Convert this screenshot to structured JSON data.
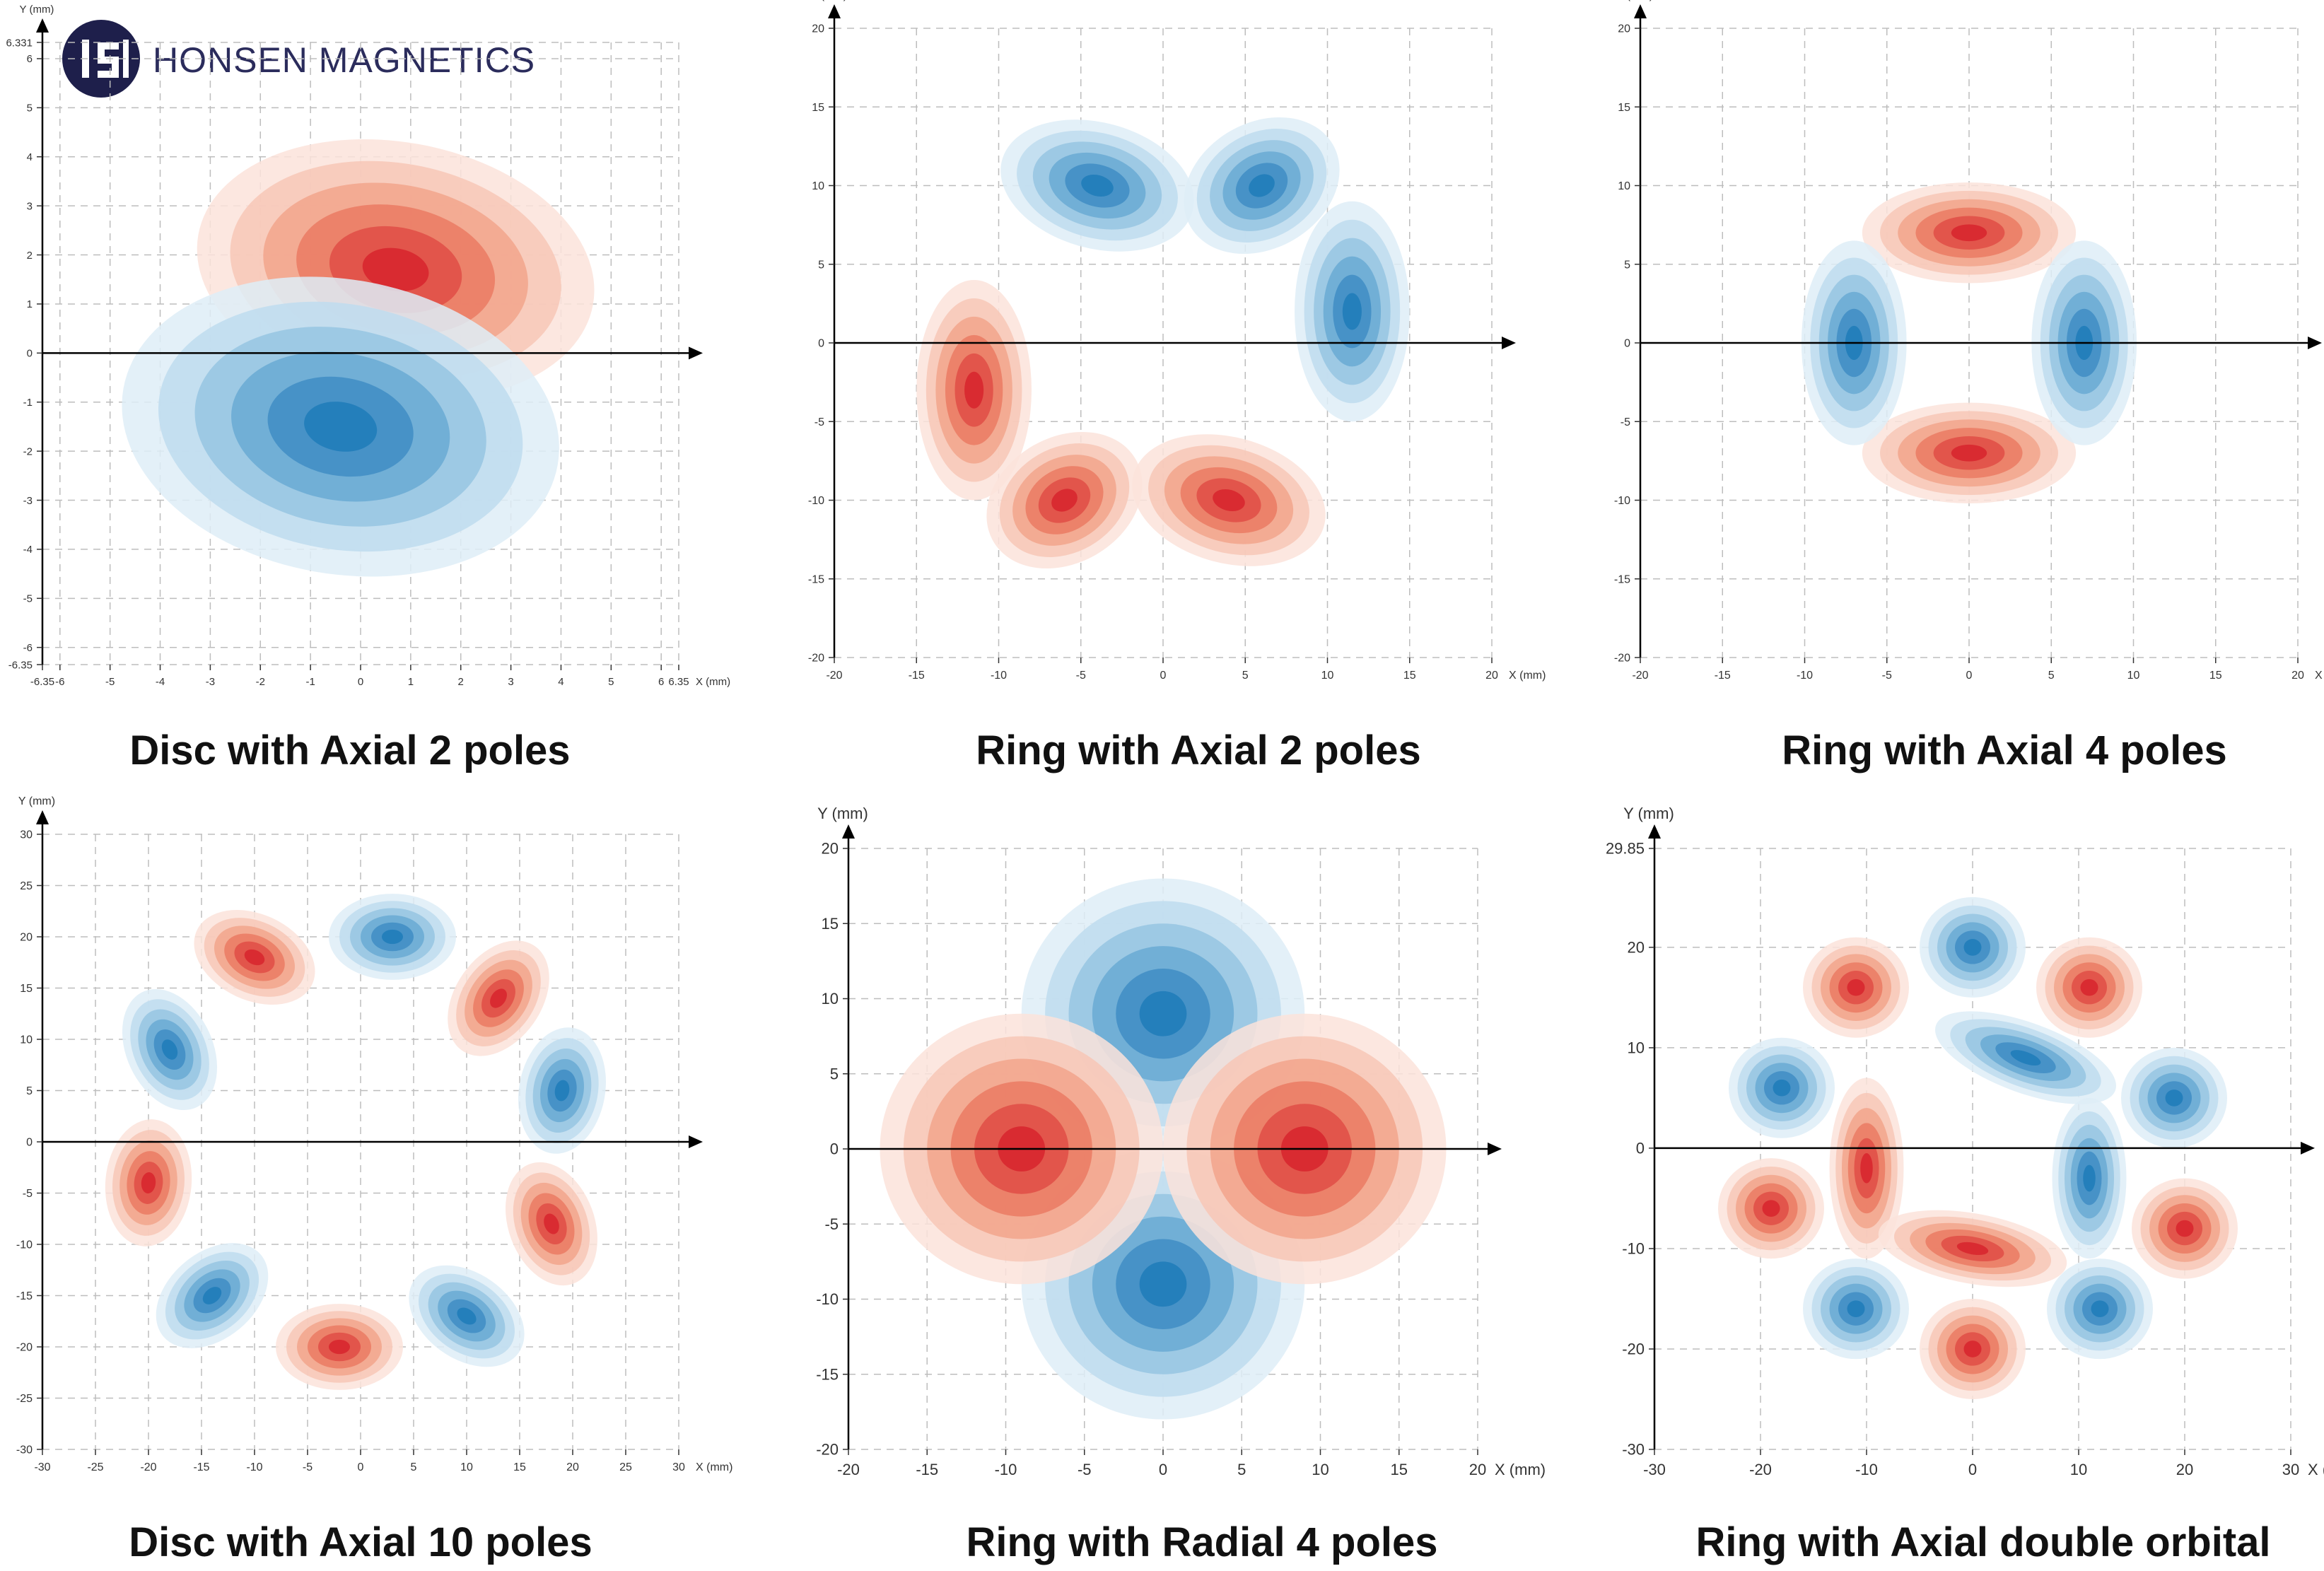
{
  "logo": {
    "text": "HONSEN MAGNETICS",
    "icon": "honsen-logo-icon"
  },
  "colors": {
    "positive": "#d7252d",
    "negative": "#1f7bb8",
    "axis": "#000000",
    "grid": "#bdbdbd"
  },
  "chart_data": [
    {
      "type": "heatmap",
      "title": "Disc with Axial 2 poles",
      "xlabel": "X (mm)",
      "ylabel": "Y (mm)",
      "xlim": [
        -6.35,
        6.35
      ],
      "ylim": [
        -6.35,
        6.331
      ],
      "xticks": [
        "-6.35",
        "-6",
        "-5",
        "-4",
        "-3",
        "-2",
        "-1",
        "0",
        "1",
        "2",
        "3",
        "4",
        "5",
        "6",
        "6.35"
      ],
      "xtick_values": [
        -6.35,
        -6,
        -5,
        -4,
        -3,
        -2,
        -1,
        0,
        1,
        2,
        3,
        4,
        5,
        6,
        6.35
      ],
      "yticks": [
        "-6.35",
        "-6",
        "-5",
        "-4",
        "-3",
        "-2",
        "-1",
        "0",
        "1",
        "2",
        "3",
        "4",
        "5",
        "6",
        "6.331"
      ],
      "ytick_values": [
        -6.35,
        -6,
        -5,
        -4,
        -3,
        -2,
        -1,
        0,
        1,
        2,
        3,
        4,
        5,
        6,
        6.331
      ],
      "grid": true,
      "poles": [
        {
          "polarity": "N",
          "x": 0.7,
          "y": 1.7,
          "rx": 4.0,
          "ry": 2.6,
          "angle": -10
        },
        {
          "polarity": "S",
          "x": -0.4,
          "y": -1.5,
          "rx": 4.4,
          "ry": 3.0,
          "angle": -10
        }
      ]
    },
    {
      "type": "heatmap",
      "title": "Ring with Axial 2 poles",
      "xlabel": "X (mm)",
      "ylabel": "Y (mm)",
      "xlim": [
        -20,
        20
      ],
      "ylim": [
        -20,
        20
      ],
      "xticks": [
        "-20",
        "-15",
        "-10",
        "-5",
        "0",
        "5",
        "10",
        "15",
        "20"
      ],
      "xtick_values": [
        -20,
        -15,
        -10,
        -5,
        0,
        5,
        10,
        15,
        20
      ],
      "yticks": [
        "-20",
        "-15",
        "-10",
        "-5",
        "0",
        "5",
        "10",
        "15",
        "20"
      ],
      "ytick_values": [
        -20,
        -15,
        -10,
        -5,
        0,
        5,
        10,
        15,
        20
      ],
      "grid": true,
      "poles": [
        {
          "polarity": "S",
          "x": -4,
          "y": 10,
          "rx": 6,
          "ry": 4,
          "angle": -15
        },
        {
          "polarity": "S",
          "x": 11.5,
          "y": 2,
          "rx": 3.5,
          "ry": 7,
          "angle": 0
        },
        {
          "polarity": "S",
          "x": 6,
          "y": 10,
          "rx": 5,
          "ry": 4,
          "angle": 30
        },
        {
          "polarity": "N",
          "x": -11.5,
          "y": -3,
          "rx": 3.5,
          "ry": 7,
          "angle": 0
        },
        {
          "polarity": "N",
          "x": 4,
          "y": -10,
          "rx": 6,
          "ry": 4,
          "angle": -15
        },
        {
          "polarity": "N",
          "x": -6,
          "y": -10,
          "rx": 5,
          "ry": 4,
          "angle": 30
        }
      ]
    },
    {
      "type": "heatmap",
      "title": "Ring with Axial 4 poles",
      "xlabel": "X (mm)",
      "ylabel": "Y (mm)",
      "xlim": [
        -20,
        20
      ],
      "ylim": [
        -20,
        20
      ],
      "xticks": [
        "-20",
        "-15",
        "-10",
        "-5",
        "0",
        "5",
        "10",
        "15",
        "20"
      ],
      "xtick_values": [
        -20,
        -15,
        -10,
        -5,
        0,
        5,
        10,
        15,
        20
      ],
      "yticks": [
        "-20",
        "-15",
        "-10",
        "-5",
        "0",
        "5",
        "10",
        "15",
        "20"
      ],
      "ytick_values": [
        -20,
        -15,
        -10,
        -5,
        0,
        5,
        10,
        15,
        20
      ],
      "grid": true,
      "poles": [
        {
          "polarity": "N",
          "x": 0,
          "y": 7,
          "rx": 6.5,
          "ry": 3.2,
          "angle": 0
        },
        {
          "polarity": "N",
          "x": 0,
          "y": -7,
          "rx": 6.5,
          "ry": 3.2,
          "angle": 0
        },
        {
          "polarity": "S",
          "x": -7,
          "y": 0,
          "rx": 3.2,
          "ry": 6.5,
          "angle": 0
        },
        {
          "polarity": "S",
          "x": 7,
          "y": 0,
          "rx": 3.2,
          "ry": 6.5,
          "angle": 0
        }
      ]
    },
    {
      "type": "heatmap",
      "title": "Disc with Axial 10 poles",
      "xlabel": "X (mm)",
      "ylabel": "Y (mm)",
      "xlim": [
        -30,
        30
      ],
      "ylim": [
        -30,
        30
      ],
      "xticks": [
        "-30",
        "-25",
        "-20",
        "-15",
        "-10",
        "-5",
        "0",
        "5",
        "10",
        "15",
        "20",
        "25",
        "30"
      ],
      "xtick_values": [
        -30,
        -25,
        -20,
        -15,
        -10,
        -5,
        0,
        5,
        10,
        15,
        20,
        25,
        30
      ],
      "yticks": [
        "-30",
        "-25",
        "-20",
        "-15",
        "-10",
        "-5",
        "0",
        "5",
        "10",
        "15",
        "20",
        "25",
        "30"
      ],
      "ytick_values": [
        -30,
        -25,
        -20,
        -15,
        -10,
        -5,
        0,
        5,
        10,
        15,
        20,
        25,
        30
      ],
      "grid": true,
      "poles": [
        {
          "polarity": "S",
          "x": 3,
          "y": 20,
          "rx": 6,
          "ry": 4.2,
          "angle": 0
        },
        {
          "polarity": "N",
          "x": 13,
          "y": 14,
          "rx": 6,
          "ry": 4.2,
          "angle": 55
        },
        {
          "polarity": "S",
          "x": 19,
          "y": 5,
          "rx": 6,
          "ry": 4.2,
          "angle": 80
        },
        {
          "polarity": "N",
          "x": 18,
          "y": -8,
          "rx": 6,
          "ry": 4.2,
          "angle": -70
        },
        {
          "polarity": "S",
          "x": 10,
          "y": -17,
          "rx": 6,
          "ry": 4.2,
          "angle": -35
        },
        {
          "polarity": "N",
          "x": -2,
          "y": -20,
          "rx": 6,
          "ry": 4.2,
          "angle": 0
        },
        {
          "polarity": "S",
          "x": -14,
          "y": -15,
          "rx": 6,
          "ry": 4.2,
          "angle": 40
        },
        {
          "polarity": "N",
          "x": -20,
          "y": -4,
          "rx": 6,
          "ry": 4.2,
          "angle": 85
        },
        {
          "polarity": "S",
          "x": -18,
          "y": 9,
          "rx": 6,
          "ry": 4.2,
          "angle": -65
        },
        {
          "polarity": "N",
          "x": -10,
          "y": 18,
          "rx": 6,
          "ry": 4.2,
          "angle": -25
        }
      ]
    },
    {
      "type": "heatmap",
      "title": "Ring with Radial 4 poles",
      "xlabel": "X (mm)",
      "ylabel": "Y (mm)",
      "xlim": [
        -20,
        20
      ],
      "ylim": [
        -20,
        20
      ],
      "xticks": [
        "-20",
        "-15",
        "-10",
        "-5",
        "0",
        "5",
        "10",
        "15",
        "20"
      ],
      "xtick_values": [
        -20,
        -15,
        -10,
        -5,
        0,
        5,
        10,
        15,
        20
      ],
      "yticks": [
        "-20",
        "-15",
        "-10",
        "-5",
        "0",
        "5",
        "10",
        "15",
        "20"
      ],
      "ytick_values": [
        -20,
        -15,
        -10,
        -5,
        0,
        5,
        10,
        15,
        20
      ],
      "grid": true,
      "poles": [
        {
          "polarity": "S",
          "x": 0,
          "y": 9,
          "rx": 9,
          "ry": 9,
          "angle": 0
        },
        {
          "polarity": "S",
          "x": 0,
          "y": -9,
          "rx": 9,
          "ry": 9,
          "angle": 0
        },
        {
          "polarity": "N",
          "x": -9,
          "y": 0,
          "rx": 9,
          "ry": 9,
          "angle": 0
        },
        {
          "polarity": "N",
          "x": 9,
          "y": 0,
          "rx": 9,
          "ry": 9,
          "angle": 0
        }
      ]
    },
    {
      "type": "heatmap",
      "title": "Ring with Axial double orbital",
      "xlabel": "X (mm)",
      "ylabel": "Y (mm)",
      "xlim": [
        -30,
        30
      ],
      "ylim": [
        -30,
        29.85
      ],
      "xticks": [
        "-30",
        "-20",
        "-10",
        "0",
        "10",
        "20",
        "30"
      ],
      "xtick_values": [
        -30,
        -20,
        -10,
        0,
        10,
        20,
        30
      ],
      "yticks": [
        "-30",
        "-20",
        "-10",
        "0",
        "10",
        "20",
        "29.85"
      ],
      "ytick_values": [
        -30,
        -20,
        -10,
        0,
        10,
        20,
        29.85
      ],
      "grid": true,
      "poles": [
        {
          "polarity": "N",
          "x": -11,
          "y": 16,
          "rx": 5,
          "ry": 5,
          "angle": 0
        },
        {
          "polarity": "S",
          "x": 0,
          "y": 20,
          "rx": 5,
          "ry": 5,
          "angle": 0
        },
        {
          "polarity": "N",
          "x": 11,
          "y": 16,
          "rx": 5,
          "ry": 5,
          "angle": 0
        },
        {
          "polarity": "S",
          "x": -18,
          "y": 6,
          "rx": 5,
          "ry": 5,
          "angle": 0
        },
        {
          "polarity": "S",
          "x": 19,
          "y": 5,
          "rx": 5,
          "ry": 5,
          "angle": 0
        },
        {
          "polarity": "N",
          "x": -19,
          "y": -6,
          "rx": 5,
          "ry": 5,
          "angle": 0
        },
        {
          "polarity": "N",
          "x": 20,
          "y": -8,
          "rx": 5,
          "ry": 5,
          "angle": 0
        },
        {
          "polarity": "S",
          "x": -11,
          "y": -16,
          "rx": 5,
          "ry": 5,
          "angle": 0
        },
        {
          "polarity": "N",
          "x": 0,
          "y": -20,
          "rx": 5,
          "ry": 5,
          "angle": 0
        },
        {
          "polarity": "S",
          "x": 12,
          "y": -16,
          "rx": 5,
          "ry": 5,
          "angle": 0
        },
        {
          "polarity": "S",
          "x": 5,
          "y": 9,
          "rx": 9,
          "ry": 3.5,
          "angle": -20
        },
        {
          "polarity": "S",
          "x": 11,
          "y": -3,
          "rx": 3.5,
          "ry": 8,
          "angle": 0
        },
        {
          "polarity": "N",
          "x": -10,
          "y": -2,
          "rx": 3.5,
          "ry": 9,
          "angle": 0
        },
        {
          "polarity": "N",
          "x": 0,
          "y": -10,
          "rx": 9,
          "ry": 3.5,
          "angle": -10
        }
      ]
    }
  ]
}
